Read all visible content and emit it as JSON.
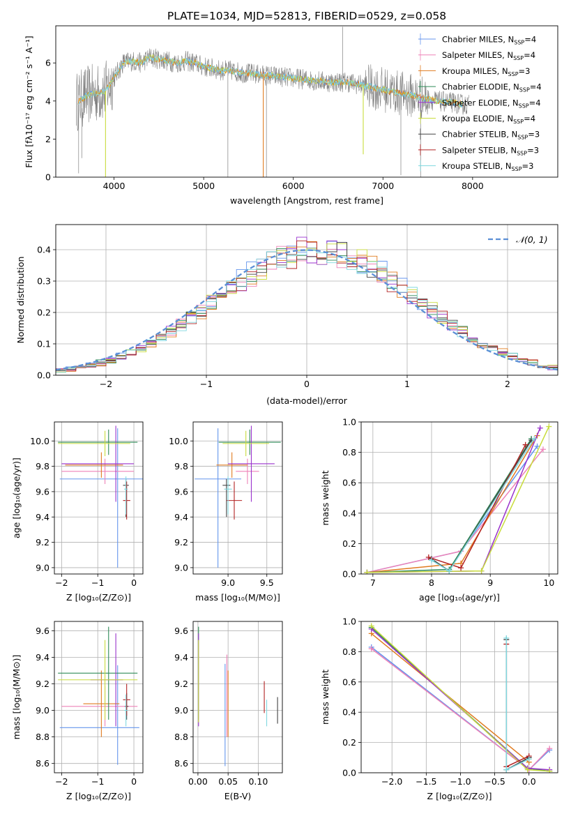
{
  "colors": {
    "Chabrier MILES": "#6495ed",
    "Salpeter MILES": "#ee82b8",
    "Kroupa MILES": "#e07b1f",
    "Chabrier ELODIE": "#2e8b57",
    "Salpeter ELODIE": "#9932cc",
    "Kroupa ELODIE": "#c8dc3c",
    "Chabrier STELIB": "#444444",
    "Salpeter STELIB": "#b22222",
    "Kroupa STELIB": "#7fd8df",
    "data": "#808080",
    "normal": "#5b8fd6"
  },
  "chart_data": [
    {
      "id": "spectrum",
      "type": "line",
      "title": "PLATE=1034, MJD=52813, FIBERID=0529, z=0.058",
      "xlabel": "wavelength [Angstrom, rest frame]",
      "ylabel": "Flux [fλ10⁻¹⁷ erg cm⁻² s⁻¹ A⁻¹]",
      "xlim": [
        3350,
        8950
      ],
      "ylim": [
        0,
        7.95
      ],
      "xticks": [
        4000,
        5000,
        6000,
        7000,
        8000
      ],
      "yticks": [
        0,
        2,
        4,
        6
      ],
      "grid": false,
      "legend_position": "right",
      "legend": [
        {
          "name": "Chabrier MILES",
          "label": "Chabrier MILES, N",
          "sub": "SSP",
          "n": "=4"
        },
        {
          "name": "Salpeter MILES",
          "label": "Salpeter MILES, N",
          "sub": "SSP",
          "n": "=4"
        },
        {
          "name": "Kroupa MILES",
          "label": "Kroupa MILES, N",
          "sub": "SSP",
          "n": "=3"
        },
        {
          "name": "Chabrier ELODIE",
          "label": "Chabrier ELODIE, N",
          "sub": "SSP",
          "n": "=4"
        },
        {
          "name": "Salpeter ELODIE",
          "label": "Salpeter ELODIE, N",
          "sub": "SSP",
          "n": "=4"
        },
        {
          "name": "Kroupa ELODIE",
          "label": "Kroupa ELODIE, N",
          "sub": "SSP",
          "n": "=4"
        },
        {
          "name": "Chabrier STELIB",
          "label": "Chabrier STELIB, N",
          "sub": "SSP",
          "n": "=3"
        },
        {
          "name": "Salpeter STELIB",
          "label": "Salpeter STELIB, N",
          "sub": "SSP",
          "n": "=3"
        },
        {
          "name": "Kroupa STELIB",
          "label": "Kroupa STELIB, N",
          "sub": "SSP",
          "n": "=3"
        }
      ],
      "model_continuum": [
        [
          3600,
          4.0
        ],
        [
          3700,
          4.3
        ],
        [
          3800,
          4.4
        ],
        [
          3900,
          4.5
        ],
        [
          4000,
          5.2
        ],
        [
          4100,
          6.0
        ],
        [
          4200,
          6.1
        ],
        [
          4300,
          6.0
        ],
        [
          4400,
          6.3
        ],
        [
          4500,
          6.2
        ],
        [
          4600,
          6.1
        ],
        [
          4700,
          6.0
        ],
        [
          4800,
          6.1
        ],
        [
          4900,
          6.0
        ],
        [
          5000,
          5.8
        ],
        [
          5100,
          5.7
        ],
        [
          5200,
          5.6
        ],
        [
          5300,
          5.6
        ],
        [
          5400,
          5.5
        ],
        [
          5600,
          5.4
        ],
        [
          5800,
          5.3
        ],
        [
          6000,
          5.2
        ],
        [
          6200,
          5.1
        ],
        [
          6400,
          5.0
        ],
        [
          6600,
          5.0
        ],
        [
          6800,
          4.8
        ],
        [
          7000,
          4.6
        ],
        [
          7200,
          4.4
        ],
        [
          7400,
          4.2
        ],
        [
          7600,
          4.0
        ],
        [
          7800,
          3.9
        ],
        [
          7900,
          3.8
        ]
      ]
    },
    {
      "id": "residuals",
      "type": "histogram",
      "xlabel": "(data-model)/error",
      "ylabel": "Normed distribution",
      "xlim": [
        -2.5,
        2.5
      ],
      "ylim": [
        0,
        0.48
      ],
      "xticks": [
        -2,
        -1,
        0,
        1,
        2
      ],
      "yticks": [
        0.0,
        0.1,
        0.2,
        0.3,
        0.4
      ],
      "grid": true,
      "legend_position": "top-right",
      "legend": "𝒩(0, 1)",
      "bin_width": 0.1
    },
    {
      "id": "age-vs-Z",
      "type": "errorbar",
      "xlabel": "Z [log₁₀(Z/Z⊙)]",
      "ylabel": "age  [log₁₀(age/yr)]",
      "xlim": [
        -2.2,
        0.25
      ],
      "ylim": [
        8.95,
        10.15
      ],
      "xticks": [
        -2,
        -1,
        0
      ],
      "yticks": [
        9.0,
        9.2,
        9.4,
        9.6,
        9.8,
        10.0
      ],
      "grid": true,
      "points": [
        {
          "series": "Chabrier MILES",
          "x": -0.45,
          "xerr": [
            1.6,
            0.7
          ],
          "y": 9.7,
          "yerr": [
            0.7,
            0.4
          ]
        },
        {
          "series": "Salpeter MILES",
          "x": -0.8,
          "xerr": [
            1.2,
            0.8
          ],
          "y": 9.76,
          "yerr": [
            0.1,
            0.1
          ]
        },
        {
          "series": "Kroupa MILES",
          "x": -0.9,
          "xerr": [
            1.0,
            0.6
          ],
          "y": 9.81,
          "yerr": [
            0.1,
            0.1
          ]
        },
        {
          "series": "Chabrier ELODIE",
          "x": -0.7,
          "xerr": [
            1.4,
            0.8
          ],
          "y": 9.99,
          "yerr": [
            0.1,
            0.1
          ]
        },
        {
          "series": "Salpeter ELODIE",
          "x": -0.5,
          "xerr": [
            1.5,
            0.5
          ],
          "y": 9.82,
          "yerr": [
            0.3,
            0.3
          ]
        },
        {
          "series": "Kroupa ELODIE",
          "x": -0.8,
          "xerr": [
            1.3,
            0.7
          ],
          "y": 9.98,
          "yerr": [
            0.1,
            0.1
          ]
        },
        {
          "series": "Chabrier STELIB",
          "x": -0.22,
          "xerr": [
            0.08,
            0.08
          ],
          "y": 9.65,
          "yerr": [
            0.25,
            0.05
          ]
        },
        {
          "series": "Salpeter STELIB",
          "x": -0.2,
          "xerr": [
            0.1,
            0.1
          ],
          "y": 9.53,
          "yerr": [
            0.15,
            0.15
          ]
        },
        {
          "series": "Kroupa STELIB",
          "x": -0.22,
          "xerr": [
            0.05,
            0.05
          ],
          "y": 9.62,
          "yerr": [
            0.2,
            0.1
          ]
        }
      ]
    },
    {
      "id": "age-vs-mass",
      "type": "errorbar",
      "xlabel": "mass [log₁₀(M/M⊙)]",
      "ylabel": "",
      "xlim": [
        8.55,
        9.7
      ],
      "ylim": [
        8.95,
        10.15
      ],
      "xticks": [
        9.0,
        9.5
      ],
      "yticks": [
        9.0,
        9.2,
        9.4,
        9.6,
        9.8,
        10.0
      ],
      "grid": true,
      "points": [
        {
          "series": "Chabrier MILES",
          "x": 8.87,
          "xerr": [
            0.3,
            0.3
          ],
          "y": 9.7,
          "yerr": [
            0.7,
            0.4
          ]
        },
        {
          "series": "Salpeter MILES",
          "x": 9.25,
          "xerr": [
            0.15,
            0.15
          ],
          "y": 9.76,
          "yerr": [
            0.1,
            0.1
          ]
        },
        {
          "series": "Kroupa MILES",
          "x": 9.05,
          "xerr": [
            0.2,
            0.2
          ],
          "y": 9.81,
          "yerr": [
            0.1,
            0.1
          ]
        },
        {
          "series": "Chabrier ELODIE",
          "x": 9.28,
          "xerr": [
            0.4,
            0.4
          ],
          "y": 9.99,
          "yerr": [
            0.1,
            0.1
          ]
        },
        {
          "series": "Salpeter ELODIE",
          "x": 9.3,
          "xerr": [
            0.3,
            0.3
          ],
          "y": 9.82,
          "yerr": [
            0.3,
            0.3
          ]
        },
        {
          "series": "Kroupa ELODIE",
          "x": 9.23,
          "xerr": [
            0.3,
            0.3
          ],
          "y": 9.98,
          "yerr": [
            0.1,
            0.1
          ]
        },
        {
          "series": "Chabrier STELIB",
          "x": 8.98,
          "xerr": [
            0.05,
            0.05
          ],
          "y": 9.65,
          "yerr": [
            0.25,
            0.05
          ]
        },
        {
          "series": "Salpeter STELIB",
          "x": 9.08,
          "xerr": [
            0.1,
            0.1
          ],
          "y": 9.53,
          "yerr": [
            0.15,
            0.15
          ]
        },
        {
          "series": "Kroupa STELIB",
          "x": 9.0,
          "xerr": [
            0.05,
            0.05
          ],
          "y": 9.62,
          "yerr": [
            0.2,
            0.1
          ]
        }
      ]
    },
    {
      "id": "mass-weight-vs-age",
      "type": "line",
      "xlabel": "age  [log₁₀(age/yr)]",
      "ylabel": "mass weight",
      "xlim": [
        6.8,
        10.15
      ],
      "ylim": [
        0,
        1
      ],
      "xticks": [
        7,
        8,
        9,
        10
      ],
      "yticks": [
        0.0,
        0.2,
        0.4,
        0.6,
        0.8,
        1.0
      ],
      "grid": true,
      "series": [
        {
          "name": "Chabrier MILES",
          "x": [
            6.9,
            8.5,
            9.8
          ],
          "y": [
            0.01,
            0.15,
            0.84
          ]
        },
        {
          "name": "Salpeter MILES",
          "x": [
            6.9,
            8.5,
            9.9
          ],
          "y": [
            0.01,
            0.15,
            0.82
          ]
        },
        {
          "name": "Kroupa MILES",
          "x": [
            6.9,
            8.5,
            9.8
          ],
          "y": [
            0.01,
            0.07,
            0.91
          ]
        },
        {
          "name": "Chabrier ELODIE",
          "x": [
            6.9,
            8.3,
            9.7
          ],
          "y": [
            0.01,
            0.03,
            0.89
          ]
        },
        {
          "name": "Salpeter ELODIE",
          "x": [
            6.9,
            8.85,
            9.85
          ],
          "y": [
            0.01,
            0.02,
            0.96
          ]
        },
        {
          "name": "Kroupa ELODIE",
          "x": [
            6.9,
            8.85,
            10.0
          ],
          "y": [
            0.01,
            0.02,
            0.97
          ]
        },
        {
          "name": "Chabrier STELIB",
          "x": [
            8.0,
            8.3,
            9.7
          ],
          "y": [
            0.1,
            0.02,
            0.88
          ]
        },
        {
          "name": "Salpeter STELIB",
          "x": [
            7.95,
            8.5,
            9.6
          ],
          "y": [
            0.11,
            0.04,
            0.85
          ]
        },
        {
          "name": "Kroupa STELIB",
          "x": [
            8.0,
            8.3,
            9.75
          ],
          "y": [
            0.09,
            0.02,
            0.89
          ]
        }
      ]
    },
    {
      "id": "mass-vs-Z",
      "type": "errorbar",
      "xlabel": "Z [log₁₀(Z/Z⊙)]",
      "ylabel": "mass [log₁₀(M/M⊙)]",
      "xlim": [
        -2.2,
        0.25
      ],
      "ylim": [
        8.53,
        9.67
      ],
      "xticks": [
        -2,
        -1,
        0
      ],
      "yticks": [
        8.6,
        8.8,
        9.0,
        9.2,
        9.4,
        9.6
      ],
      "grid": true,
      "points": [
        {
          "series": "Chabrier MILES",
          "x": -0.45,
          "xerr": [
            1.6,
            0.6
          ],
          "y": 8.87,
          "yerr": [
            0.28,
            0.47
          ]
        },
        {
          "series": "Salpeter MILES",
          "x": -0.8,
          "xerr": [
            1.2,
            0.9
          ],
          "y": 9.03,
          "yerr": [
            0.15,
            0.15
          ]
        },
        {
          "series": "Kroupa MILES",
          "x": -0.9,
          "xerr": [
            0.5,
            0.5
          ],
          "y": 9.05,
          "yerr": [
            0.25,
            0.25
          ]
        },
        {
          "series": "Chabrier ELODIE",
          "x": -0.7,
          "xerr": [
            1.4,
            0.8
          ],
          "y": 9.28,
          "yerr": [
            0.35,
            0.35
          ]
        },
        {
          "series": "Salpeter ELODIE",
          "x": -0.5,
          "xerr": [
            0.7,
            0.2
          ],
          "y": 9.23,
          "yerr": [
            0.35,
            0.35
          ]
        },
        {
          "series": "Kroupa ELODIE",
          "x": -0.8,
          "xerr": [
            1.3,
            0.9
          ],
          "y": 9.23,
          "yerr": [
            0.3,
            0.3
          ]
        },
        {
          "series": "Chabrier STELIB",
          "x": -0.2,
          "xerr": [
            0.05,
            0.05
          ],
          "y": 9.03,
          "yerr": [
            0.1,
            0.1
          ]
        },
        {
          "series": "Salpeter STELIB",
          "x": -0.2,
          "xerr": [
            0.1,
            0.1
          ],
          "y": 9.08,
          "yerr": [
            0.12,
            0.12
          ]
        },
        {
          "series": "Kroupa STELIB",
          "x": -0.22,
          "xerr": [
            0.05,
            0.05
          ],
          "y": 9.0,
          "yerr": [
            0.12,
            0.12
          ]
        }
      ]
    },
    {
      "id": "mass-vs-ebv",
      "type": "errorbar",
      "xlabel": "E(B-V)",
      "ylabel": "",
      "xlim": [
        -0.008,
        0.14
      ],
      "ylim": [
        8.53,
        9.67
      ],
      "xticks": [
        0.0,
        0.05,
        0.1
      ],
      "yticks": [
        8.6,
        8.8,
        9.0,
        9.2,
        9.4,
        9.6
      ],
      "grid": true,
      "points": [
        {
          "series": "Chabrier MILES",
          "x": 0.045,
          "xerr": [
            0,
            0
          ],
          "y": 8.95,
          "yerr": [
            0.37,
            0.4
          ]
        },
        {
          "series": "Salpeter MILES",
          "x": 0.048,
          "xerr": [
            0,
            0
          ],
          "y": 9.1,
          "yerr": [
            0.3,
            0.32
          ]
        },
        {
          "series": "Kroupa MILES",
          "x": 0.05,
          "xerr": [
            0,
            0
          ],
          "y": 9.05,
          "yerr": [
            0.25,
            0.25
          ]
        },
        {
          "series": "Chabrier ELODIE",
          "x": 0.001,
          "xerr": [
            0,
            0
          ],
          "y": 9.28,
          "yerr": [
            0.35,
            0.35
          ]
        },
        {
          "series": "Salpeter ELODIE",
          "x": 0.001,
          "xerr": [
            0,
            0
          ],
          "y": 9.23,
          "yerr": [
            0.35,
            0.35
          ]
        },
        {
          "series": "Kroupa ELODIE",
          "x": 0.001,
          "xerr": [
            0,
            0
          ],
          "y": 9.23,
          "yerr": [
            0.32,
            0.3
          ]
        },
        {
          "series": "Chabrier STELIB",
          "x": 0.132,
          "xerr": [
            0,
            0
          ],
          "y": 9.0,
          "yerr": [
            0.1,
            0.1
          ]
        },
        {
          "series": "Salpeter STELIB",
          "x": 0.11,
          "xerr": [
            0,
            0
          ],
          "y": 9.1,
          "yerr": [
            0.12,
            0.12
          ]
        },
        {
          "series": "Kroupa STELIB",
          "x": 0.114,
          "xerr": [
            0,
            0
          ],
          "y": 8.98,
          "yerr": [
            0.1,
            0.1
          ]
        }
      ]
    },
    {
      "id": "mass-weight-vs-Z",
      "type": "line",
      "xlabel": "Z [log₁₀(Z/Z⊙)]",
      "ylabel": "mass weight",
      "xlim": [
        -2.45,
        0.42
      ],
      "ylim": [
        0,
        1
      ],
      "xticks": [
        -2.0,
        -1.5,
        -1.0,
        -0.5,
        0.0
      ],
      "yticks": [
        0.0,
        0.2,
        0.4,
        0.6,
        0.8,
        1.0
      ],
      "grid": true,
      "series": [
        {
          "name": "Chabrier MILES",
          "x": [
            -2.3,
            0.0,
            0.3
          ],
          "y": [
            0.83,
            0.02,
            0.15
          ]
        },
        {
          "name": "Salpeter MILES",
          "x": [
            -2.3,
            0.0,
            0.3
          ],
          "y": [
            0.82,
            0.02,
            0.16
          ]
        },
        {
          "name": "Kroupa MILES",
          "x": [
            -2.3,
            0.0
          ],
          "y": [
            0.92,
            0.07
          ]
        },
        {
          "name": "Chabrier ELODIE",
          "x": [
            -2.3,
            -0.02,
            0.3
          ],
          "y": [
            0.96,
            0.03,
            0.01
          ]
        },
        {
          "name": "Salpeter ELODIE",
          "x": [
            -2.3,
            -0.02,
            0.3
          ],
          "y": [
            0.95,
            0.03,
            0.02
          ]
        },
        {
          "name": "Kroupa ELODIE",
          "x": [
            -2.3,
            -0.02,
            0.3
          ],
          "y": [
            0.97,
            0.02,
            0.01
          ]
        },
        {
          "name": "Chabrier STELIB",
          "x": [
            -0.33,
            -0.33,
            0.0
          ],
          "y": [
            0.88,
            0.02,
            0.1
          ]
        },
        {
          "name": "Salpeter STELIB",
          "x": [
            -0.33,
            -0.33,
            0.0
          ],
          "y": [
            0.85,
            0.04,
            0.11
          ]
        },
        {
          "name": "Kroupa STELIB",
          "x": [
            -0.33,
            -0.33,
            0.0
          ],
          "y": [
            0.89,
            0.02,
            0.09
          ]
        }
      ]
    }
  ]
}
